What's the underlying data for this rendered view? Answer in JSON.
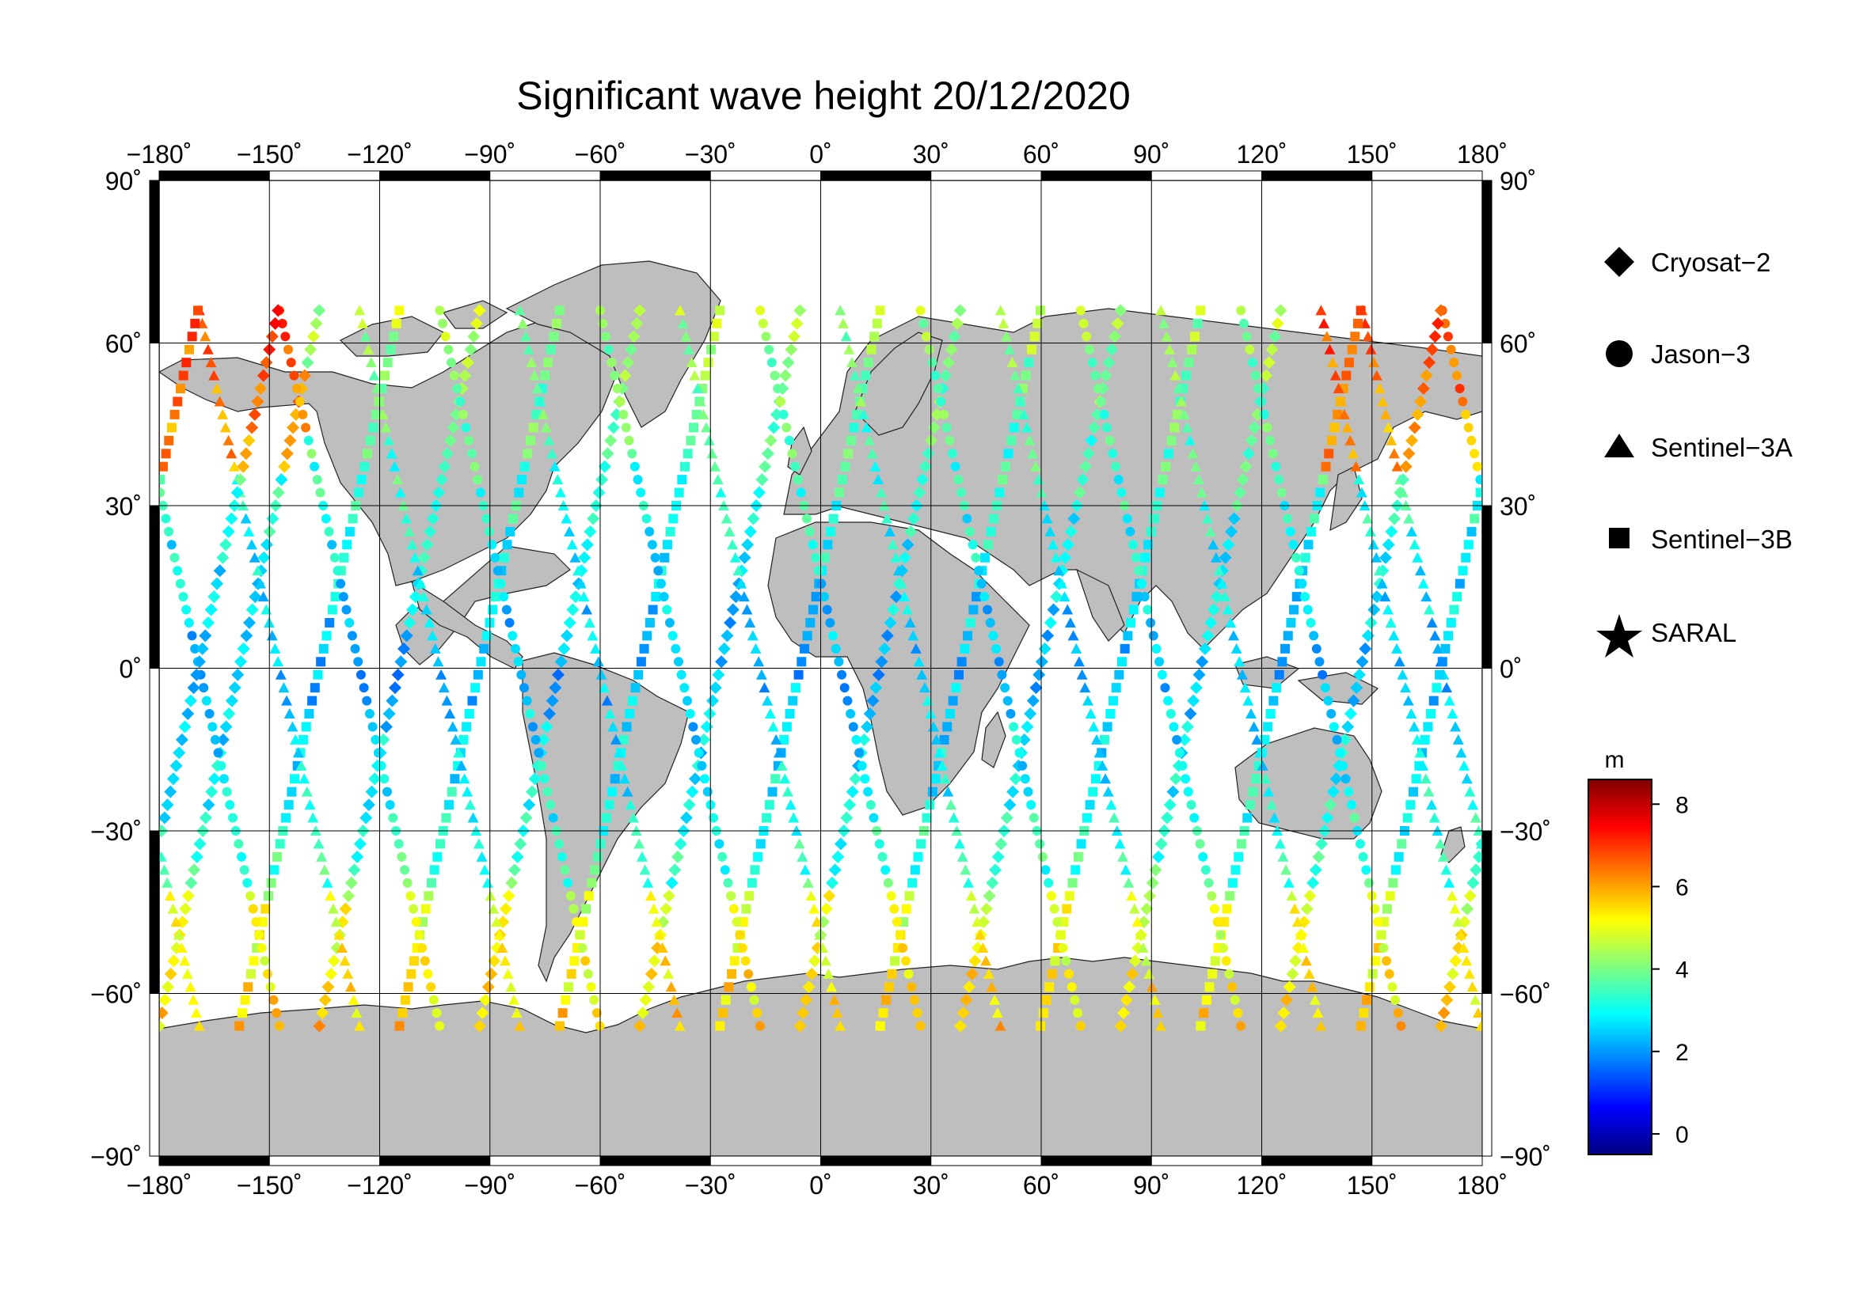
{
  "title": "Significant wave height 20/12/2020",
  "map": {
    "lon_ticks": [
      "−180˚",
      "−150˚",
      "−120˚",
      "−90˚",
      "−60˚",
      "−30˚",
      "0˚",
      "30˚",
      "60˚",
      "90˚",
      "120˚",
      "150˚",
      "180˚"
    ],
    "lat_ticks": [
      "90˚",
      "60˚",
      "30˚",
      "0˚",
      "−30˚",
      "−60˚",
      "−90˚"
    ],
    "land_color": "#bebebe",
    "ocean_color": "#ffffff"
  },
  "legend": {
    "items": [
      {
        "label": "Cryosat−2",
        "symbol": "diamond"
      },
      {
        "label": "Jason−3",
        "symbol": "circle"
      },
      {
        "label": "Sentinel−3A",
        "symbol": "triangle"
      },
      {
        "label": "Sentinel−3B",
        "symbol": "square"
      },
      {
        "label": "SARAL",
        "symbol": "star"
      }
    ]
  },
  "colorbar": {
    "unit": "m",
    "ticks": [
      "8",
      "6",
      "4",
      "2",
      "0"
    ],
    "min": -0.5,
    "max": 8.6,
    "colormap": [
      "#00007f",
      "#0000ff",
      "#007fff",
      "#00ffff",
      "#7fff7f",
      "#ffff00",
      "#ff7f00",
      "#ff0000",
      "#7f0000"
    ]
  }
}
